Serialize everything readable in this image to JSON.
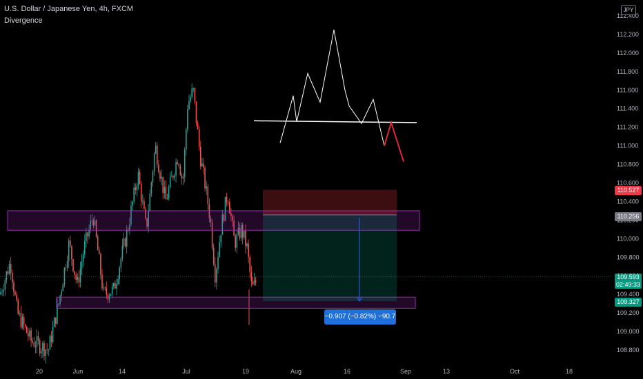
{
  "header": {
    "title": "U.S. Dollar / Japanese Yen, 4h, FXCM",
    "indicator": "Divergence",
    "currency": "JPY"
  },
  "chart_data": {
    "type": "candlestick",
    "ylim": [
      108.7,
      112.45
    ],
    "y_ticks": [
      "112.400",
      "112.200",
      "112.000",
      "111.800",
      "111.600",
      "111.400",
      "111.200",
      "111.000",
      "110.800",
      "110.600",
      "110.400",
      "110.200",
      "110.000",
      "109.800",
      "109.600",
      "109.400",
      "109.200",
      "109.000",
      "108.800"
    ],
    "x_ticks": [
      "20",
      "Jun",
      "14",
      "Jul",
      "19",
      "Aug",
      "16",
      "Sep",
      "13",
      "Oct",
      "18"
    ],
    "price_tags": {
      "stop": {
        "value": "110.527",
        "color": "#f23645"
      },
      "entry": {
        "value": "110.256",
        "color": "#787b86"
      },
      "current": {
        "value": "109.593",
        "countdown": "02:49:33",
        "color": "#089981"
      },
      "target": {
        "value": "109.327",
        "color": "#089981"
      }
    },
    "zones": [
      {
        "name": "resistance-zone",
        "top": 110.3,
        "bottom": 110.09
      },
      {
        "name": "support-zone",
        "top": 109.37,
        "bottom": 109.25
      }
    ],
    "position": {
      "entry": 110.256,
      "stop": 110.527,
      "target": 109.327
    },
    "measure": {
      "label": "−0.907 (−0.82%) −90.7"
    },
    "pattern": {
      "neckline": 111.26,
      "white_points": [
        111.03,
        111.54,
        111.26,
        111.78,
        111.47,
        112.25,
        111.6,
        111.43,
        111.24,
        111.5,
        111.0
      ],
      "red_points": [
        111.0,
        111.25,
        110.83
      ]
    }
  }
}
